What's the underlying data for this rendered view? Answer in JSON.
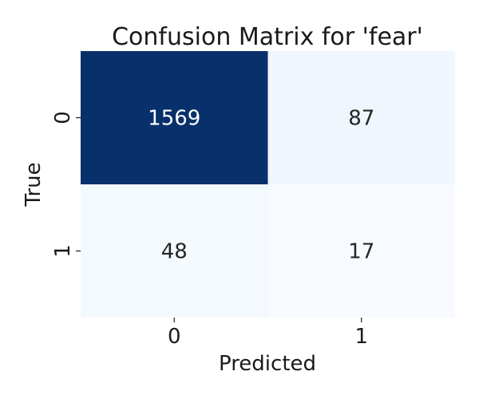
{
  "chart_data": {
    "type": "heatmap",
    "title": "Confusion Matrix for 'fear'",
    "xlabel": "Predicted",
    "ylabel": "True",
    "x_categories": [
      "0",
      "1"
    ],
    "y_categories": [
      "0",
      "1"
    ],
    "values": [
      [
        1569,
        87
      ],
      [
        48,
        17
      ]
    ],
    "colormap": "Blues",
    "color_low": "#f7fbff",
    "color_high": "#08306b",
    "text_dark": "#262626",
    "text_light": "#ffffff",
    "colorbar": false,
    "grid": false
  }
}
